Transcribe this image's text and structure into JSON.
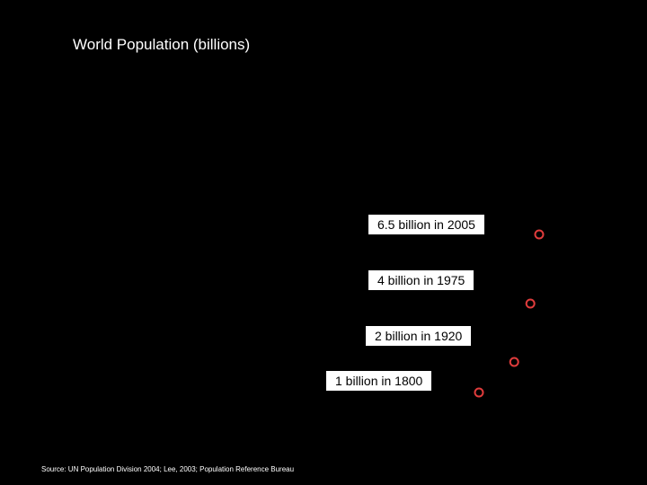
{
  "chart_data": {
    "type": "scatter",
    "title": "World Population (billions)",
    "xlabel": "",
    "ylabel": "",
    "points": [
      {
        "year": 1800,
        "population": 1,
        "label": "1 billion in 1800"
      },
      {
        "year": 1920,
        "population": 2,
        "label": "2 billion in 1920"
      },
      {
        "year": 1975,
        "population": 4,
        "label": "4 billion in 1975"
      },
      {
        "year": 2005,
        "population": 6.5,
        "label": "6.5 billion in 2005"
      }
    ],
    "marker_color": "#e03c3c",
    "label_background": "#ffffff"
  },
  "source": "Source:  UN Population Division 2004; Lee, 2003; Population Reference Bureau"
}
